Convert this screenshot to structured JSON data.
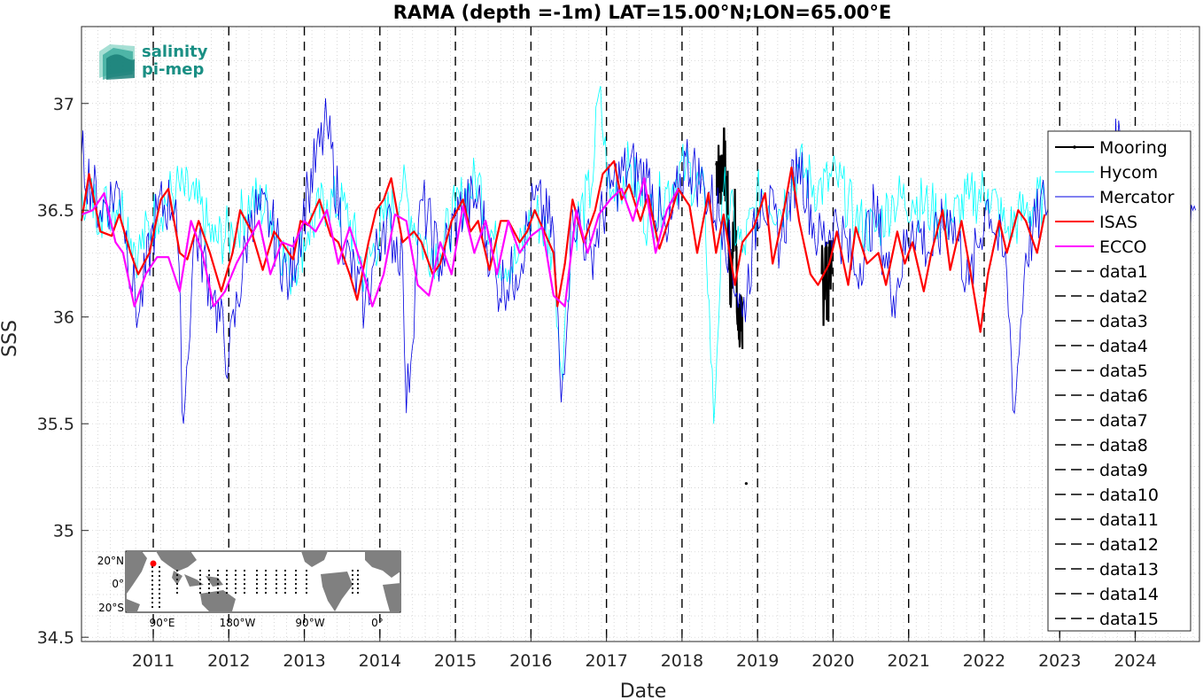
{
  "chart_data": {
    "type": "line",
    "title": "RAMA (depth =-1m) LAT=15.00°N;LON=65.00°E",
    "xlabel": "Date",
    "ylabel": "SSS",
    "xlim": [
      2010.05,
      2024.85
    ],
    "ylim": [
      34.48,
      37.36
    ],
    "y_ticks": [
      "34.5",
      "35",
      "35.5",
      "36",
      "36.5",
      "37"
    ],
    "x_ticks": [
      "2011",
      "2012",
      "2013",
      "2014",
      "2015",
      "2016",
      "2017",
      "2018",
      "2019",
      "2020",
      "2021",
      "2022",
      "2023",
      "2024"
    ],
    "grid": "minor dotted",
    "legend_position": "right",
    "vertical_year_lines": [
      2011,
      2012,
      2013,
      2014,
      2015,
      2016,
      2017,
      2018,
      2019,
      2020,
      2021,
      2022,
      2023,
      2024
    ],
    "series": [
      {
        "name": "Mooring",
        "color": "#000000",
        "segments": [
          {
            "x": [
              2018.45,
              2018.5,
              2018.55,
              2018.6,
              2018.65,
              2018.7,
              2018.73,
              2018.76,
              2018.78,
              2018.8
            ],
            "y": [
              36.72,
              36.65,
              36.75,
              36.55,
              36.1,
              36.6,
              36.0,
              35.9,
              36.1,
              35.85
            ]
          },
          {
            "x": [
              2019.85,
              2019.88,
              2019.9,
              2019.93,
              2019.96,
              2019.98
            ],
            "y": [
              36.2,
              36.1,
              36.3,
              36.05,
              36.3,
              36.2
            ]
          }
        ],
        "points": [
          {
            "x": 2018.85,
            "y": 35.22
          }
        ]
      },
      {
        "name": "Hycom",
        "color": "#00ffff",
        "x": [
          2010.05,
          2010.3,
          2010.55,
          2010.8,
          2011.05,
          2011.3,
          2011.55,
          2011.8,
          2012.05,
          2012.3,
          2012.55,
          2012.8,
          2013.05,
          2013.3,
          2013.55,
          2013.8,
          2014.05,
          2014.3,
          2014.55,
          2014.8,
          2015.0,
          2015.3,
          2015.55,
          2015.8,
          2016.05,
          2016.3,
          2016.4,
          2016.55,
          2016.8,
          2016.9,
          2017.05,
          2017.3,
          2017.55,
          2017.8,
          2018.05,
          2018.3,
          2018.42,
          2018.55,
          2018.8,
          2019.05,
          2019.3,
          2019.55,
          2019.8,
          2020.05,
          2020.3,
          2020.55,
          2020.8,
          2021.05,
          2021.3,
          2021.55,
          2021.8,
          2022.05,
          2022.3,
          2022.55,
          2022.8
        ],
        "y": [
          36.6,
          36.5,
          36.55,
          36.3,
          36.5,
          36.6,
          36.55,
          36.35,
          36.4,
          36.55,
          36.5,
          36.2,
          36.4,
          36.55,
          36.5,
          36.2,
          36.45,
          36.6,
          36.35,
          36.3,
          36.5,
          36.65,
          36.3,
          36.25,
          36.5,
          36.3,
          35.75,
          36.4,
          36.6,
          37.05,
          36.55,
          36.7,
          36.45,
          36.6,
          36.7,
          36.55,
          35.5,
          36.6,
          36.3,
          36.6,
          36.5,
          36.7,
          36.6,
          36.65,
          36.45,
          36.4,
          36.55,
          36.55,
          36.5,
          36.45,
          36.55,
          36.6,
          36.4,
          36.5,
          36.55
        ]
      },
      {
        "name": "Mercator",
        "color": "#0000e0",
        "x": [
          2010.05,
          2010.3,
          2010.55,
          2010.8,
          2011.05,
          2011.3,
          2011.4,
          2011.55,
          2011.8,
          2012.0,
          2012.3,
          2012.55,
          2012.8,
          2013.05,
          2013.3,
          2013.55,
          2013.8,
          2014.05,
          2014.3,
          2014.35,
          2014.55,
          2014.8,
          2015.05,
          2015.3,
          2015.55,
          2015.8,
          2016.05,
          2016.3,
          2016.4,
          2016.55,
          2016.8,
          2017.05,
          2017.3,
          2017.55,
          2017.8,
          2018.05,
          2018.3,
          2018.55,
          2018.8,
          2019.05,
          2019.3,
          2019.55,
          2019.8,
          2020.05,
          2020.3,
          2020.55,
          2020.8,
          2021.05,
          2021.3,
          2021.55,
          2021.8,
          2022.05,
          2022.3,
          2022.4,
          2022.55,
          2022.8,
          2023.05,
          2023.3,
          2023.55,
          2023.8,
          2024.05,
          2024.3,
          2024.55,
          2024.8
        ],
        "y": [
          36.75,
          36.5,
          36.6,
          36.0,
          36.5,
          36.55,
          35.5,
          36.4,
          36.1,
          35.8,
          36.5,
          36.45,
          36.15,
          36.6,
          36.9,
          36.3,
          36.05,
          36.45,
          36.3,
          35.55,
          36.55,
          36.25,
          36.5,
          36.55,
          36.15,
          36.2,
          36.55,
          36.4,
          35.6,
          36.5,
          36.3,
          36.6,
          36.7,
          36.65,
          36.35,
          36.75,
          36.6,
          36.45,
          36.0,
          36.6,
          36.35,
          36.75,
          36.35,
          36.45,
          36.2,
          36.5,
          36.1,
          36.45,
          36.3,
          36.5,
          36.15,
          36.55,
          36.2,
          35.55,
          36.3,
          36.55,
          36.45,
          36.3,
          36.55,
          36.85,
          36.4,
          36.5,
          36.35,
          36.5
        ]
      },
      {
        "name": "ISAS",
        "color": "#ff0000",
        "x": [
          2010.05,
          2010.15,
          2010.3,
          2010.45,
          2010.55,
          2010.7,
          2010.8,
          2010.95,
          2011.1,
          2011.2,
          2011.35,
          2011.45,
          2011.6,
          2011.75,
          2011.9,
          2012.05,
          2012.15,
          2012.3,
          2012.45,
          2012.6,
          2012.7,
          2012.85,
          2012.95,
          2013.05,
          2013.2,
          2013.35,
          2013.45,
          2013.6,
          2013.7,
          2013.85,
          2013.95,
          2014.05,
          2014.15,
          2014.3,
          2014.45,
          2014.55,
          2014.7,
          2014.8,
          2014.95,
          2015.1,
          2015.2,
          2015.3,
          2015.45,
          2015.6,
          2015.7,
          2015.85,
          2015.95,
          2016.05,
          2016.2,
          2016.3,
          2016.35,
          2016.45,
          2016.55,
          2016.7,
          2016.85,
          2016.95,
          2017.1,
          2017.2,
          2017.3,
          2017.45,
          2017.55,
          2017.7,
          2017.85,
          2017.95,
          2018.1,
          2018.2,
          2018.35,
          2018.45,
          2018.55,
          2018.7,
          2018.8,
          2018.95,
          2019.1,
          2019.2,
          2019.35,
          2019.45,
          2019.55,
          2019.7,
          2019.8,
          2019.95,
          2020.05,
          2020.2,
          2020.3,
          2020.45,
          2020.6,
          2020.7,
          2020.85,
          2020.95,
          2021.05,
          2021.2,
          2021.3,
          2021.45,
          2021.55,
          2021.7,
          2021.8,
          2021.95,
          2022.05,
          2022.2,
          2022.3,
          2022.45,
          2022.55,
          2022.7,
          2022.8
        ],
        "y": [
          36.45,
          36.67,
          36.4,
          36.38,
          36.48,
          36.3,
          36.2,
          36.3,
          36.55,
          36.6,
          36.3,
          36.27,
          36.45,
          36.3,
          36.12,
          36.3,
          36.5,
          36.4,
          36.22,
          36.4,
          36.35,
          36.27,
          36.45,
          36.43,
          36.55,
          36.38,
          36.35,
          36.2,
          36.08,
          36.35,
          36.5,
          36.55,
          36.65,
          36.35,
          36.4,
          36.35,
          36.2,
          36.25,
          36.45,
          36.55,
          36.4,
          36.45,
          36.22,
          36.45,
          36.45,
          36.35,
          36.4,
          36.5,
          36.38,
          36.3,
          36.05,
          36.25,
          36.55,
          36.35,
          36.5,
          36.67,
          36.73,
          36.55,
          36.62,
          36.45,
          36.57,
          36.32,
          36.48,
          36.6,
          36.52,
          36.3,
          36.58,
          36.3,
          36.48,
          36.15,
          36.35,
          36.42,
          36.58,
          36.25,
          36.5,
          36.7,
          36.45,
          36.2,
          36.15,
          36.25,
          36.4,
          36.15,
          36.42,
          36.25,
          36.3,
          36.15,
          36.4,
          36.25,
          36.35,
          36.12,
          36.3,
          36.5,
          36.22,
          36.45,
          36.25,
          35.93,
          36.2,
          36.45,
          36.3,
          36.5,
          36.45,
          36.3,
          36.48
        ]
      },
      {
        "name": "ECCO",
        "color": "#ff00ff",
        "x": [
          2010.05,
          2010.2,
          2010.35,
          2010.5,
          2010.6,
          2010.75,
          2010.9,
          2011.05,
          2011.2,
          2011.35,
          2011.5,
          2011.65,
          2011.8,
          2011.95,
          2012.1,
          2012.25,
          2012.4,
          2012.55,
          2012.7,
          2012.85,
          2013.0,
          2013.15,
          2013.3,
          2013.45,
          2013.6,
          2013.75,
          2013.9,
          2014.05,
          2014.2,
          2014.35,
          2014.5,
          2014.65,
          2014.8,
          2014.95,
          2015.1,
          2015.25,
          2015.4,
          2015.55,
          2015.7,
          2015.85,
          2016.0,
          2016.15,
          2016.3,
          2016.45,
          2016.6,
          2016.75,
          2016.9,
          2017.05,
          2017.2,
          2017.35,
          2017.5,
          2017.65,
          2017.8,
          2017.95
        ],
        "y": [
          36.48,
          36.5,
          36.58,
          36.35,
          36.3,
          36.05,
          36.2,
          36.28,
          36.28,
          36.12,
          36.45,
          36.3,
          36.05,
          36.12,
          36.25,
          36.35,
          36.45,
          36.2,
          36.35,
          36.33,
          36.45,
          36.4,
          36.5,
          36.25,
          36.42,
          36.25,
          36.05,
          36.2,
          36.48,
          36.45,
          36.15,
          36.1,
          36.35,
          36.2,
          36.52,
          36.3,
          36.45,
          36.2,
          36.45,
          36.3,
          36.38,
          36.42,
          36.1,
          36.05,
          36.5,
          36.3,
          36.48,
          36.55,
          36.6,
          36.45,
          36.65,
          36.3,
          36.5,
          36.6
        ]
      },
      {
        "name": "data1",
        "color": "#000000",
        "dashed": true
      },
      {
        "name": "data2",
        "color": "#000000",
        "dashed": true
      },
      {
        "name": "data3",
        "color": "#000000",
        "dashed": true
      },
      {
        "name": "data4",
        "color": "#000000",
        "dashed": true
      },
      {
        "name": "data5",
        "color": "#000000",
        "dashed": true
      },
      {
        "name": "data6",
        "color": "#000000",
        "dashed": true
      },
      {
        "name": "data7",
        "color": "#000000",
        "dashed": true
      },
      {
        "name": "data8",
        "color": "#000000",
        "dashed": true
      },
      {
        "name": "data9",
        "color": "#000000",
        "dashed": true
      },
      {
        "name": "data10",
        "color": "#000000",
        "dashed": true
      },
      {
        "name": "data11",
        "color": "#000000",
        "dashed": true
      },
      {
        "name": "data12",
        "color": "#000000",
        "dashed": true
      },
      {
        "name": "data13",
        "color": "#000000",
        "dashed": true
      },
      {
        "name": "data14",
        "color": "#000000",
        "dashed": true
      },
      {
        "name": "data15",
        "color": "#000000",
        "dashed": true
      }
    ]
  },
  "logo": {
    "line1": "salinity",
    "line2": "pi-mep",
    "color": "#1a8f84"
  },
  "inset_map": {
    "y_ticks": [
      "20°N",
      "0°",
      "20°S"
    ],
    "x_ticks": [
      "90°E",
      "180°W",
      "90°W",
      "0°"
    ],
    "marker_color": "#ff0000",
    "land_color": "#808080"
  }
}
